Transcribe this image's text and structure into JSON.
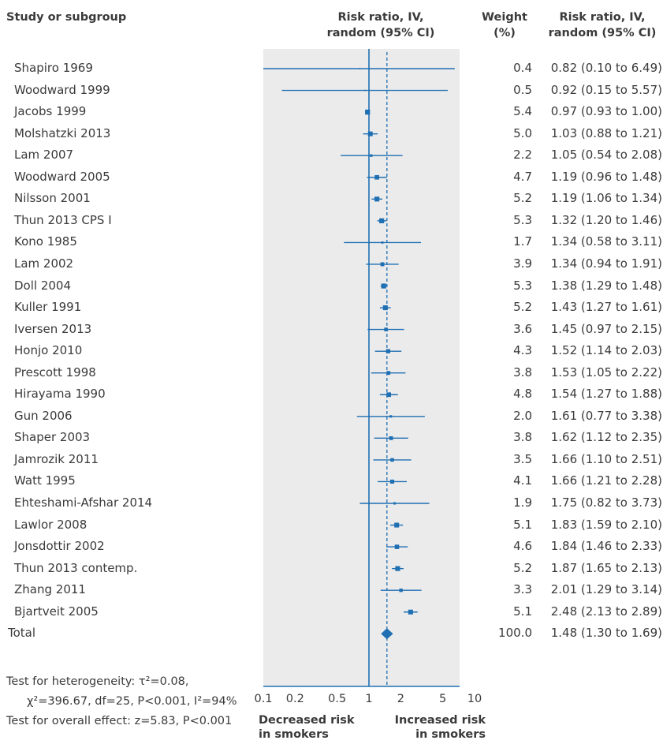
{
  "headers": {
    "study": "Study or subgroup",
    "rr_line1": "Risk ratio, IV,",
    "rr_line2": "random (95% CI)",
    "weight_line1": "Weight",
    "weight_line2": "(%)",
    "ci_line1": "Risk ratio, IV,",
    "ci_line2": "random (95% CI)"
  },
  "chart_data": {
    "type": "forest",
    "x_scale": "log",
    "xlim": [
      0.1,
      10
    ],
    "x_ticks": [
      {
        "value": 0.1,
        "label": "0.1"
      },
      {
        "value": 0.2,
        "label": "0.2"
      },
      {
        "value": 0.5,
        "label": "0.5"
      },
      {
        "value": 1,
        "label": "1"
      },
      {
        "value": 2,
        "label": "2"
      },
      {
        "value": 5,
        "label": "5"
      },
      {
        "value": 10,
        "label": "10"
      }
    ],
    "null_value": 1,
    "pooled_line_value": 1.48,
    "studies": [
      {
        "study": "Shapiro 1969",
        "rr": 0.82,
        "lo": 0.1,
        "hi": 6.49,
        "weight": "0.4",
        "ci_text": "0.82 (0.10 to 6.49)"
      },
      {
        "study": "Woodward 1999",
        "rr": 0.92,
        "lo": 0.15,
        "hi": 5.57,
        "weight": "0.5",
        "ci_text": "0.92 (0.15 to 5.57)"
      },
      {
        "study": "Jacobs 1999",
        "rr": 0.97,
        "lo": 0.93,
        "hi": 1.0,
        "weight": "5.4",
        "ci_text": "0.97 (0.93 to 1.00)"
      },
      {
        "study": "Molshatzki 2013",
        "rr": 1.03,
        "lo": 0.88,
        "hi": 1.21,
        "weight": "5.0",
        "ci_text": "1.03 (0.88 to 1.21)"
      },
      {
        "study": "Lam 2007",
        "rr": 1.05,
        "lo": 0.54,
        "hi": 2.08,
        "weight": "2.2",
        "ci_text": "1.05 (0.54 to 2.08)"
      },
      {
        "study": "Woodward 2005",
        "rr": 1.19,
        "lo": 0.96,
        "hi": 1.48,
        "weight": "4.7",
        "ci_text": "1.19 (0.96 to 1.48)"
      },
      {
        "study": "Nilsson 2001",
        "rr": 1.19,
        "lo": 1.06,
        "hi": 1.34,
        "weight": "5.2",
        "ci_text": "1.19 (1.06 to 1.34)"
      },
      {
        "study": "Thun 2013 CPS I",
        "rr": 1.32,
        "lo": 1.2,
        "hi": 1.46,
        "weight": "5.3",
        "ci_text": "1.32 (1.20 to 1.46)"
      },
      {
        "study": "Kono 1985",
        "rr": 1.34,
        "lo": 0.58,
        "hi": 3.11,
        "weight": "1.7",
        "ci_text": "1.34 (0.58 to 3.11)"
      },
      {
        "study": "Lam 2002",
        "rr": 1.34,
        "lo": 0.94,
        "hi": 1.91,
        "weight": "3.9",
        "ci_text": "1.34 (0.94 to 1.91)"
      },
      {
        "study": "Doll 2004",
        "rr": 1.38,
        "lo": 1.29,
        "hi": 1.48,
        "weight": "5.3",
        "ci_text": "1.38 (1.29 to 1.48)"
      },
      {
        "study": "Kuller 1991",
        "rr": 1.43,
        "lo": 1.27,
        "hi": 1.61,
        "weight": "5.2",
        "ci_text": "1.43 (1.27 to 1.61)"
      },
      {
        "study": "Iversen 2013",
        "rr": 1.45,
        "lo": 0.97,
        "hi": 2.15,
        "weight": "3.6",
        "ci_text": "1.45 (0.97 to 2.15)"
      },
      {
        "study": "Honjo 2010",
        "rr": 1.52,
        "lo": 1.14,
        "hi": 2.03,
        "weight": "4.3",
        "ci_text": "1.52 (1.14 to 2.03)"
      },
      {
        "study": "Prescott 1998",
        "rr": 1.53,
        "lo": 1.05,
        "hi": 2.22,
        "weight": "3.8",
        "ci_text": "1.53 (1.05 to 2.22)"
      },
      {
        "study": "Hirayama 1990",
        "rr": 1.54,
        "lo": 1.27,
        "hi": 1.88,
        "weight": "4.8",
        "ci_text": "1.54 (1.27 to 1.88)"
      },
      {
        "study": "Gun 2006",
        "rr": 1.61,
        "lo": 0.77,
        "hi": 3.38,
        "weight": "2.0",
        "ci_text": "1.61 (0.77 to 3.38)"
      },
      {
        "study": "Shaper 2003",
        "rr": 1.62,
        "lo": 1.12,
        "hi": 2.35,
        "weight": "3.8",
        "ci_text": "1.62 (1.12 to 2.35)"
      },
      {
        "study": "Jamrozik 2011",
        "rr": 1.66,
        "lo": 1.1,
        "hi": 2.51,
        "weight": "3.5",
        "ci_text": "1.66 (1.10 to 2.51)"
      },
      {
        "study": "Watt 1995",
        "rr": 1.66,
        "lo": 1.21,
        "hi": 2.28,
        "weight": "4.1",
        "ci_text": "1.66 (1.21 to 2.28)"
      },
      {
        "study": "Ehteshami-Afshar 2014",
        "rr": 1.75,
        "lo": 0.82,
        "hi": 3.73,
        "weight": "1.9",
        "ci_text": "1.75 (0.82 to 3.73)"
      },
      {
        "study": "Lawlor 2008",
        "rr": 1.83,
        "lo": 1.59,
        "hi": 2.1,
        "weight": "5.1",
        "ci_text": "1.83 (1.59 to 2.10)"
      },
      {
        "study": "Jonsdottir 2002",
        "rr": 1.84,
        "lo": 1.46,
        "hi": 2.33,
        "weight": "4.6",
        "ci_text": "1.84 (1.46 to 2.33)"
      },
      {
        "study": "Thun 2013 contemp.",
        "rr": 1.87,
        "lo": 1.65,
        "hi": 2.13,
        "weight": "5.2",
        "ci_text": "1.87 (1.65 to 2.13)"
      },
      {
        "study": "Zhang 2011",
        "rr": 2.01,
        "lo": 1.29,
        "hi": 3.14,
        "weight": "3.3",
        "ci_text": "2.01 (1.29 to 3.14)"
      },
      {
        "study": "Bjartveit 2005",
        "rr": 2.48,
        "lo": 2.13,
        "hi": 2.89,
        "weight": "5.1",
        "ci_text": "2.48 (2.13 to 2.89)"
      }
    ],
    "total": {
      "label": "Total",
      "rr": 1.48,
      "lo": 1.3,
      "hi": 1.69,
      "weight": "100.0",
      "ci_text": "1.48 (1.30 to 1.69)"
    },
    "direction_left_line1": "Decreased risk",
    "direction_left_line2": "in smokers",
    "direction_right_line1": "Increased risk",
    "direction_right_line2": "in smokers"
  },
  "footer": {
    "heterogeneity_line1": "Test for heterogeneity: τ²=0.08,",
    "heterogeneity_line2": "χ²=396.67, df=25, P<0.001, I²=94%",
    "overall_effect": "Test for overall effect: z=5.83, P<0.001"
  },
  "colors": {
    "panel_bg": "#ebebeb",
    "marker": "#1f6fb3",
    "axis": "#1f6fb3",
    "text": "#3a3a3a"
  }
}
